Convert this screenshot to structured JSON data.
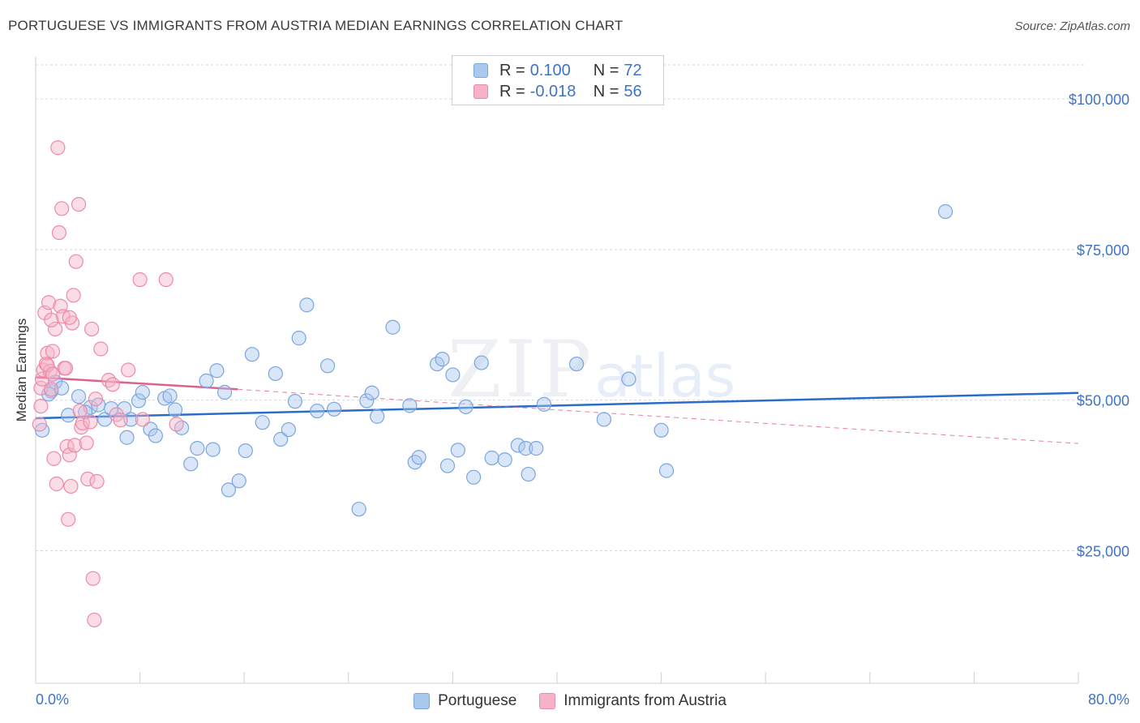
{
  "header": {
    "title": "PORTUGUESE VS IMMIGRANTS FROM AUSTRIA MEDIAN EARNINGS CORRELATION CHART",
    "source": "Source: ZipAtlas.com"
  },
  "watermark": {
    "zip": "ZIP",
    "atlas": "atlas"
  },
  "legend": {
    "rows": [
      {
        "r_label": "R =",
        "r_value": "0.100",
        "n_label": "N =",
        "n_value": "72"
      },
      {
        "r_label": "R =",
        "r_value": "-0.018",
        "n_label": "N =",
        "n_value": "56"
      }
    ]
  },
  "bottom_legend": {
    "series1": "Portuguese",
    "series2": "Immigrants from Austria"
  },
  "colors": {
    "blue_fill": "#a9c8ee",
    "blue_stroke": "#7aa6de",
    "blue_line": "#2a6cc9",
    "pink_fill": "#f6b3c8",
    "pink_stroke": "#ec8aaa",
    "pink_line": "#e0608d",
    "grid": "#d8d8d8",
    "tick_text": "#3f73c4"
  },
  "chart_data": {
    "type": "scatter",
    "title": "PORTUGUESE VS IMMIGRANTS FROM AUSTRIA MEDIAN EARNINGS CORRELATION CHART",
    "xlabel": "",
    "ylabel": "Median Earnings",
    "xlim": [
      0,
      80
    ],
    "ylim": [
      3000,
      107000
    ],
    "x_tick_labels": [
      "0.0%",
      "80.0%"
    ],
    "y_ticks": [
      25000,
      50000,
      75000,
      100000
    ],
    "y_tick_labels": [
      "$25,000",
      "$50,000",
      "$75,000",
      "$100,000"
    ],
    "grid": true,
    "legend_position": "top-center",
    "series": [
      {
        "name": "Portuguese",
        "r": 0.1,
        "n": 72,
        "trend": {
          "x": [
            0,
            80
          ],
          "y": [
            47000,
            51200
          ],
          "style": "solid"
        },
        "points": [
          [
            0.5,
            45000
          ],
          [
            1.2,
            51500
          ],
          [
            1.5,
            53000
          ],
          [
            2.0,
            52000
          ],
          [
            2.5,
            47500
          ],
          [
            3.3,
            50600
          ],
          [
            4.2,
            48800
          ],
          [
            4.8,
            49200
          ],
          [
            5.3,
            46800
          ],
          [
            5.8,
            48600
          ],
          [
            6.8,
            48600
          ],
          [
            7.0,
            43800
          ],
          [
            7.3,
            46800
          ],
          [
            7.9,
            49900
          ],
          [
            8.2,
            51300
          ],
          [
            8.8,
            45200
          ],
          [
            9.2,
            44100
          ],
          [
            9.9,
            50300
          ],
          [
            10.3,
            50700
          ],
          [
            10.7,
            48400
          ],
          [
            11.2,
            45400
          ],
          [
            11.9,
            39400
          ],
          [
            12.4,
            42000
          ],
          [
            13.1,
            53200
          ],
          [
            13.6,
            41800
          ],
          [
            13.9,
            54900
          ],
          [
            14.5,
            51300
          ],
          [
            14.8,
            35100
          ],
          [
            15.6,
            36600
          ],
          [
            16.1,
            41600
          ],
          [
            16.6,
            57600
          ],
          [
            17.4,
            46300
          ],
          [
            18.4,
            54400
          ],
          [
            18.8,
            43500
          ],
          [
            19.4,
            45100
          ],
          [
            19.9,
            49800
          ],
          [
            20.2,
            60300
          ],
          [
            20.8,
            65800
          ],
          [
            21.6,
            48200
          ],
          [
            22.4,
            55700
          ],
          [
            22.9,
            48500
          ],
          [
            24.8,
            31900
          ],
          [
            25.4,
            49900
          ],
          [
            25.8,
            51200
          ],
          [
            26.2,
            47300
          ],
          [
            27.4,
            62100
          ],
          [
            28.7,
            49100
          ],
          [
            29.1,
            39700
          ],
          [
            29.4,
            40500
          ],
          [
            30.8,
            56000
          ],
          [
            31.2,
            56800
          ],
          [
            31.6,
            39100
          ],
          [
            32.0,
            54200
          ],
          [
            32.4,
            41700
          ],
          [
            33.0,
            48900
          ],
          [
            33.6,
            37200
          ],
          [
            34.2,
            56200
          ],
          [
            35.0,
            40400
          ],
          [
            36.0,
            40100
          ],
          [
            37.0,
            42500
          ],
          [
            37.6,
            42000
          ],
          [
            37.8,
            37700
          ],
          [
            38.4,
            42000
          ],
          [
            39.0,
            49300
          ],
          [
            41.5,
            56000
          ],
          [
            43.6,
            46800
          ],
          [
            45.5,
            53500
          ],
          [
            48.0,
            45000
          ],
          [
            48.4,
            38300
          ],
          [
            69.8,
            81300
          ],
          [
            1.0,
            51000
          ],
          [
            3.8,
            48000
          ]
        ]
      },
      {
        "name": "Immigrants from Austria",
        "r": -0.018,
        "n": 56,
        "trend": {
          "x": [
            0,
            15.5,
            80
          ],
          "y": [
            53800,
            51800,
            42800
          ],
          "style": "solid-then-dashed"
        },
        "points": [
          [
            0.3,
            46000
          ],
          [
            0.4,
            52000
          ],
          [
            0.5,
            53500
          ],
          [
            0.6,
            55000
          ],
          [
            0.7,
            64500
          ],
          [
            0.8,
            56000
          ],
          [
            0.9,
            57800
          ],
          [
            1.0,
            66200
          ],
          [
            1.1,
            54800
          ],
          [
            1.2,
            51800
          ],
          [
            1.3,
            58100
          ],
          [
            1.4,
            40300
          ],
          [
            1.5,
            61800
          ],
          [
            1.6,
            36100
          ],
          [
            1.7,
            91900
          ],
          [
            1.8,
            77800
          ],
          [
            1.9,
            65600
          ],
          [
            2.0,
            81800
          ],
          [
            2.1,
            63900
          ],
          [
            2.2,
            55300
          ],
          [
            2.3,
            55300
          ],
          [
            2.4,
            42300
          ],
          [
            2.5,
            30200
          ],
          [
            2.6,
            40900
          ],
          [
            2.7,
            35700
          ],
          [
            2.8,
            62800
          ],
          [
            2.9,
            67400
          ],
          [
            3.0,
            42500
          ],
          [
            3.1,
            73000
          ],
          [
            3.3,
            82500
          ],
          [
            3.4,
            48200
          ],
          [
            3.5,
            45500
          ],
          [
            3.6,
            46200
          ],
          [
            3.9,
            42900
          ],
          [
            4.0,
            36900
          ],
          [
            4.2,
            46400
          ],
          [
            4.3,
            61800
          ],
          [
            4.4,
            20400
          ],
          [
            4.5,
            13500
          ],
          [
            4.6,
            50200
          ],
          [
            4.7,
            36500
          ],
          [
            5.0,
            58500
          ],
          [
            5.6,
            53300
          ],
          [
            5.9,
            52600
          ],
          [
            6.2,
            47600
          ],
          [
            6.5,
            46700
          ],
          [
            7.1,
            55000
          ],
          [
            8.0,
            70000
          ],
          [
            8.2,
            46800
          ],
          [
            10.0,
            70000
          ],
          [
            10.8,
            46000
          ],
          [
            0.9,
            55800
          ],
          [
            1.2,
            63300
          ],
          [
            2.6,
            63700
          ],
          [
            0.4,
            49000
          ],
          [
            1.3,
            54300
          ]
        ]
      }
    ]
  }
}
